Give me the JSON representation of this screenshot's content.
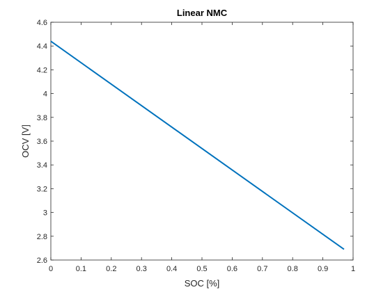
{
  "chart_data": {
    "type": "line",
    "title": "Linear NMC",
    "xlabel": "SOC [%]",
    "ylabel": "OCV [V]",
    "xlim": [
      0,
      1
    ],
    "ylim": [
      2.6,
      4.6
    ],
    "xticks": [
      0,
      0.1,
      0.2,
      0.3,
      0.4,
      0.5,
      0.6,
      0.7,
      0.8,
      0.9,
      1
    ],
    "xtick_labels": [
      "0",
      "0.1",
      "0.2",
      "0.3",
      "0.4",
      "0.5",
      "0.6",
      "0.7",
      "0.8",
      "0.9",
      "1"
    ],
    "yticks": [
      2.6,
      2.8,
      3,
      3.2,
      3.4,
      3.6,
      3.8,
      4,
      4.2,
      4.4,
      4.6
    ],
    "ytick_labels": [
      "2.6",
      "2.8",
      "3",
      "3.2",
      "3.4",
      "3.6",
      "3.8",
      "4",
      "4.2",
      "4.4",
      "4.6"
    ],
    "grid": false,
    "series": [
      {
        "color": "#0072bd",
        "x": [
          0,
          0.97
        ],
        "y": [
          4.44,
          2.69
        ]
      }
    ]
  }
}
